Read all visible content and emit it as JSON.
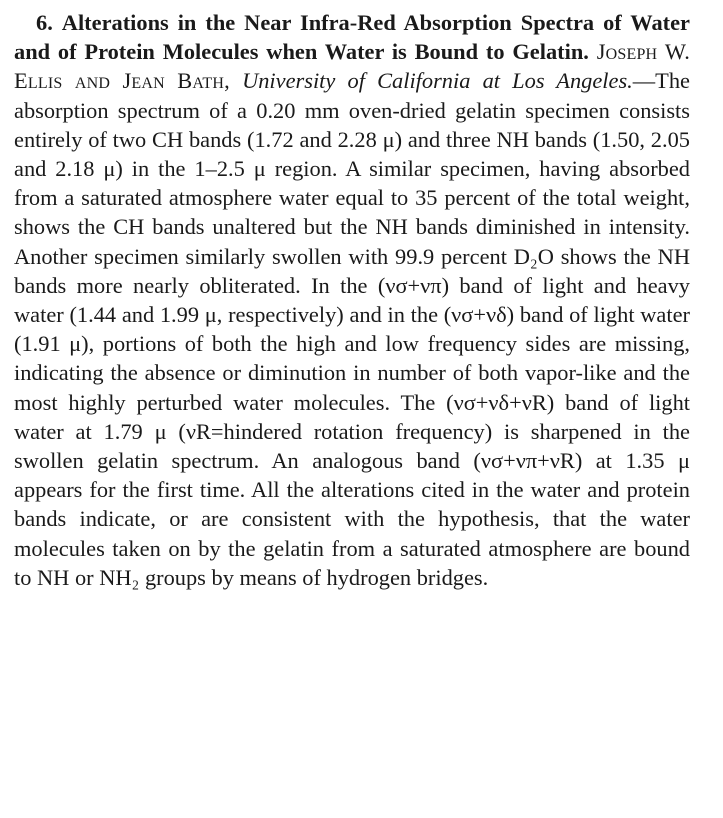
{
  "abstract": {
    "number": "6.",
    "title": "Alterations in the Near Infra-Red Absorption Spectra of Water and of Protein Molecules when Water is Bound to Gelatin.",
    "authors": "Joseph W. Ellis and Jean Bath,",
    "affiliation": "University of California at Los Angeles.",
    "body": "—The absorption spectrum of a 0.20 mm oven-dried gelatin specimen consists en­tirely of two CH bands (1.72 and 2.28 μ) and three NH bands (1.50, 2.05 and 2.18 μ) in the 1–2.5 μ region. A similar specimen, having absorbed from a saturated atmosphere water equal to 35 percent of the total weight, shows the CH bands unaltered but the NH bands di­minished in intensity. Another specimen similarly swollen with 99.9 percent D₂O shows the NH bands more nearly obliterated. In the (νσ+νπ) band of light and heavy water (1.44 and 1.99 μ, respectively) and in the (νσ+νδ) band of light water (1.91 μ), portions of both the high and low frequency sides are missing, indicating the absence or diminution in number of both vapor-like and the most highly perturbed water molecules. The (νσ+νδ+νR) band of light water at 1.79 μ (νR=hindered rotation frequency) is sharpened in the swollen gelatin spectrum. An analogous band (νσ+νπ+νR) at 1.35 μ appears for the first time. All the alterations cited in the water and protein bands indicate, or are consistent with the hypothesis, that the water molecules taken on by the gelatin from a saturated atmosphere are bound to NH or NH₂ groups by means of hydrogen bridges."
  }
}
